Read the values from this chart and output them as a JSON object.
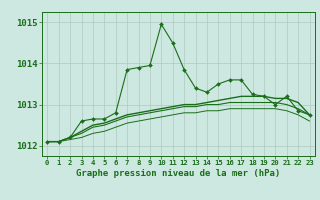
{
  "title": "Graphe pression niveau de la mer (hPa)",
  "xlabel_ticks": [
    "0",
    "1",
    "2",
    "3",
    "4",
    "5",
    "6",
    "7",
    "8",
    "9",
    "10",
    "11",
    "12",
    "13",
    "14",
    "15",
    "16",
    "17",
    "18",
    "19",
    "20",
    "21",
    "22",
    "23"
  ],
  "ylim": [
    1011.75,
    1015.25
  ],
  "yticks": [
    1012,
    1013,
    1014,
    1015
  ],
  "background_color": "#cce8e0",
  "grid_color": "#b0c8c0",
  "line_color": "#1a6e1a",
  "main_line": [
    1012.1,
    1012.1,
    1012.2,
    1012.6,
    1012.65,
    1012.65,
    1012.8,
    1013.85,
    1013.9,
    1013.95,
    1014.95,
    1014.5,
    1013.85,
    1013.4,
    1013.3,
    1013.5,
    1013.6,
    1013.6,
    1013.25,
    1013.2,
    1013.0,
    1013.2,
    1012.85,
    1012.75
  ],
  "line2": [
    1012.1,
    1012.1,
    1012.2,
    1012.35,
    1012.5,
    1012.55,
    1012.65,
    1012.75,
    1012.8,
    1012.85,
    1012.9,
    1012.95,
    1013.0,
    1013.0,
    1013.05,
    1013.1,
    1013.15,
    1013.2,
    1013.2,
    1013.2,
    1013.15,
    1013.15,
    1013.05,
    1012.75
  ],
  "line3": [
    1012.1,
    1012.1,
    1012.2,
    1012.3,
    1012.45,
    1012.5,
    1012.6,
    1012.7,
    1012.75,
    1012.8,
    1012.85,
    1012.9,
    1012.95,
    1012.95,
    1013.0,
    1013.0,
    1013.05,
    1013.05,
    1013.05,
    1013.05,
    1013.05,
    1013.0,
    1012.9,
    1012.75
  ],
  "line4": [
    1012.1,
    1012.1,
    1012.15,
    1012.2,
    1012.3,
    1012.35,
    1012.45,
    1012.55,
    1012.6,
    1012.65,
    1012.7,
    1012.75,
    1012.8,
    1012.8,
    1012.85,
    1012.85,
    1012.9,
    1012.9,
    1012.9,
    1012.9,
    1012.9,
    1012.85,
    1012.75,
    1012.6
  ],
  "figsize": [
    3.2,
    2.0
  ],
  "dpi": 100
}
